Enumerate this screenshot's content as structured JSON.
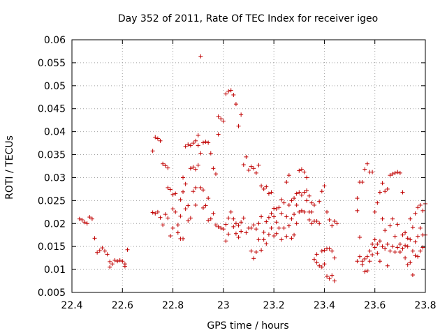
{
  "chart_data": {
    "type": "scatter",
    "title": "Day 352 of 2011, Rate Of TEC Index for receiver igeo",
    "xlabel": "GPS time / hours",
    "ylabel": "ROTI / TECUs",
    "xlim": [
      22.4,
      23.8
    ],
    "ylim": [
      0.005,
      0.06
    ],
    "xticks": [
      "22.4",
      "22.6",
      "22.8",
      "23",
      "23.2",
      "23.4",
      "23.6",
      "23.8"
    ],
    "yticks": [
      "0.005",
      "0.01",
      "0.015",
      "0.02",
      "0.025",
      "0.03",
      "0.035",
      "0.04",
      "0.045",
      "0.05",
      "0.055",
      "0.06"
    ],
    "grid": true,
    "marker": "+",
    "color": "#c00000",
    "points": [
      [
        22.43,
        0.021
      ],
      [
        22.44,
        0.0208
      ],
      [
        22.45,
        0.0203
      ],
      [
        22.46,
        0.02
      ],
      [
        22.47,
        0.0214
      ],
      [
        22.48,
        0.021
      ],
      [
        22.49,
        0.0168
      ],
      [
        22.5,
        0.0137
      ],
      [
        22.51,
        0.0141
      ],
      [
        22.52,
        0.0147
      ],
      [
        22.53,
        0.014
      ],
      [
        22.54,
        0.0133
      ],
      [
        22.55,
        0.0117
      ],
      [
        22.55,
        0.0105
      ],
      [
        22.56,
        0.0112
      ],
      [
        22.57,
        0.012
      ],
      [
        22.58,
        0.0118
      ],
      [
        22.59,
        0.012
      ],
      [
        22.6,
        0.0118
      ],
      [
        22.61,
        0.0107
      ],
      [
        22.61,
        0.0112
      ],
      [
        22.62,
        0.0143
      ],
      [
        22.72,
        0.0224
      ],
      [
        22.72,
        0.0358
      ],
      [
        22.73,
        0.0222
      ],
      [
        22.73,
        0.0388
      ],
      [
        22.74,
        0.0385
      ],
      [
        22.74,
        0.0225
      ],
      [
        22.75,
        0.038
      ],
      [
        22.75,
        0.0213
      ],
      [
        22.76,
        0.033
      ],
      [
        22.76,
        0.0197
      ],
      [
        22.77,
        0.0326
      ],
      [
        22.77,
        0.022
      ],
      [
        22.78,
        0.0321
      ],
      [
        22.78,
        0.0278
      ],
      [
        22.78,
        0.0212
      ],
      [
        22.79,
        0.0173
      ],
      [
        22.79,
        0.0274
      ],
      [
        22.8,
        0.0263
      ],
      [
        22.8,
        0.0232
      ],
      [
        22.8,
        0.019
      ],
      [
        22.81,
        0.0225
      ],
      [
        22.81,
        0.0265
      ],
      [
        22.82,
        0.0197
      ],
      [
        22.82,
        0.018
      ],
      [
        22.83,
        0.0252
      ],
      [
        22.83,
        0.0167
      ],
      [
        22.83,
        0.0216
      ],
      [
        22.84,
        0.0269
      ],
      [
        22.84,
        0.03
      ],
      [
        22.84,
        0.0167
      ],
      [
        22.85,
        0.0368
      ],
      [
        22.85,
        0.0232
      ],
      [
        22.85,
        0.0286
      ],
      [
        22.86,
        0.0372
      ],
      [
        22.86,
        0.0206
      ],
      [
        22.86,
        0.0239
      ],
      [
        22.87,
        0.037
      ],
      [
        22.87,
        0.032
      ],
      [
        22.87,
        0.0212
      ],
      [
        22.88,
        0.0375
      ],
      [
        22.88,
        0.0323
      ],
      [
        22.88,
        0.027
      ],
      [
        22.89,
        0.038
      ],
      [
        22.89,
        0.0318
      ],
      [
        22.89,
        0.0278
      ],
      [
        22.89,
        0.024
      ],
      [
        22.9,
        0.0392
      ],
      [
        22.9,
        0.0327
      ],
      [
        22.9,
        0.037
      ],
      [
        22.91,
        0.0564
      ],
      [
        22.91,
        0.0278
      ],
      [
        22.91,
        0.0353
      ],
      [
        22.92,
        0.0376
      ],
      [
        22.92,
        0.0273
      ],
      [
        22.92,
        0.0234
      ],
      [
        22.93,
        0.0378
      ],
      [
        22.93,
        0.0239
      ],
      [
        22.94,
        0.0376
      ],
      [
        22.94,
        0.0255
      ],
      [
        22.94,
        0.0207
      ],
      [
        22.95,
        0.0353
      ],
      [
        22.95,
        0.021
      ],
      [
        22.96,
        0.032
      ],
      [
        22.96,
        0.0222
      ],
      [
        22.97,
        0.0308
      ],
      [
        22.97,
        0.0197
      ],
      [
        22.98,
        0.0433
      ],
      [
        22.98,
        0.0193
      ],
      [
        22.98,
        0.0394
      ],
      [
        22.99,
        0.0428
      ],
      [
        22.99,
        0.019
      ],
      [
        23.0,
        0.0423
      ],
      [
        23.0,
        0.0188
      ],
      [
        23.01,
        0.0198
      ],
      [
        23.01,
        0.0482
      ],
      [
        23.01,
        0.0162
      ],
      [
        23.02,
        0.0488
      ],
      [
        23.02,
        0.0212
      ],
      [
        23.02,
        0.0177
      ],
      [
        23.03,
        0.049
      ],
      [
        23.03,
        0.0225
      ],
      [
        23.04,
        0.048
      ],
      [
        23.04,
        0.0193
      ],
      [
        23.04,
        0.021
      ],
      [
        23.05,
        0.046
      ],
      [
        23.05,
        0.02
      ],
      [
        23.05,
        0.0178
      ],
      [
        23.06,
        0.0412
      ],
      [
        23.06,
        0.0196
      ],
      [
        23.06,
        0.017
      ],
      [
        23.07,
        0.0437
      ],
      [
        23.07,
        0.0183
      ],
      [
        23.07,
        0.0203
      ],
      [
        23.08,
        0.0328
      ],
      [
        23.08,
        0.0212
      ],
      [
        23.09,
        0.018
      ],
      [
        23.09,
        0.0345
      ],
      [
        23.1,
        0.0316
      ],
      [
        23.1,
        0.019
      ],
      [
        23.11,
        0.019
      ],
      [
        23.11,
        0.0324
      ],
      [
        23.11,
        0.014
      ],
      [
        23.12,
        0.032
      ],
      [
        23.12,
        0.0197
      ],
      [
        23.12,
        0.0124
      ],
      [
        23.13,
        0.0138
      ],
      [
        23.13,
        0.031
      ],
      [
        23.13,
        0.0188
      ],
      [
        23.14,
        0.0327
      ],
      [
        23.14,
        0.0165
      ],
      [
        23.14,
        0.02
      ],
      [
        23.15,
        0.0282
      ],
      [
        23.15,
        0.0142
      ],
      [
        23.15,
        0.0215
      ],
      [
        23.16,
        0.0275
      ],
      [
        23.16,
        0.0165
      ],
      [
        23.16,
        0.0181
      ],
      [
        23.17,
        0.028
      ],
      [
        23.17,
        0.0204
      ],
      [
        23.17,
        0.0156
      ],
      [
        23.18,
        0.0265
      ],
      [
        23.18,
        0.0213
      ],
      [
        23.18,
        0.0176
      ],
      [
        23.19,
        0.0268
      ],
      [
        23.19,
        0.0222
      ],
      [
        23.19,
        0.019
      ],
      [
        23.2,
        0.0233
      ],
      [
        23.2,
        0.0215
      ],
      [
        23.2,
        0.0173
      ],
      [
        23.21,
        0.0232
      ],
      [
        23.21,
        0.0203
      ],
      [
        23.21,
        0.0178
      ],
      [
        23.22,
        0.0235
      ],
      [
        23.22,
        0.019
      ],
      [
        23.23,
        0.0252
      ],
      [
        23.23,
        0.0222
      ],
      [
        23.23,
        0.0165
      ],
      [
        23.24,
        0.0245
      ],
      [
        23.24,
        0.019
      ],
      [
        23.25,
        0.029
      ],
      [
        23.25,
        0.0215
      ],
      [
        23.25,
        0.0172
      ],
      [
        23.26,
        0.0305
      ],
      [
        23.26,
        0.024
      ],
      [
        23.26,
        0.0195
      ],
      [
        23.27,
        0.025
      ],
      [
        23.27,
        0.021
      ],
      [
        23.27,
        0.0168
      ],
      [
        23.28,
        0.0255
      ],
      [
        23.28,
        0.022
      ],
      [
        23.28,
        0.0175
      ],
      [
        23.29,
        0.0265
      ],
      [
        23.29,
        0.024
      ],
      [
        23.29,
        0.02
      ],
      [
        23.3,
        0.0315
      ],
      [
        23.3,
        0.0268
      ],
      [
        23.3,
        0.0225
      ],
      [
        23.31,
        0.0318
      ],
      [
        23.31,
        0.0262
      ],
      [
        23.31,
        0.0228
      ],
      [
        23.32,
        0.0312
      ],
      [
        23.32,
        0.0268
      ],
      [
        23.32,
        0.0225
      ],
      [
        23.33,
        0.03
      ],
      [
        23.33,
        0.0272
      ],
      [
        23.33,
        0.025
      ],
      [
        23.34,
        0.026
      ],
      [
        23.34,
        0.0225
      ],
      [
        23.34,
        0.0208
      ],
      [
        23.35,
        0.0245
      ],
      [
        23.35,
        0.0225
      ],
      [
        23.35,
        0.02
      ],
      [
        23.36,
        0.024
      ],
      [
        23.36,
        0.0205
      ],
      [
        23.36,
        0.0122
      ],
      [
        23.37,
        0.0205
      ],
      [
        23.37,
        0.0115
      ],
      [
        23.37,
        0.0133
      ],
      [
        23.38,
        0.0248
      ],
      [
        23.38,
        0.0108
      ],
      [
        23.38,
        0.02
      ],
      [
        23.39,
        0.027
      ],
      [
        23.39,
        0.014
      ],
      [
        23.39,
        0.0105
      ],
      [
        23.4,
        0.0282
      ],
      [
        23.4,
        0.0142
      ],
      [
        23.4,
        0.0112
      ],
      [
        23.41,
        0.0225
      ],
      [
        23.41,
        0.0145
      ],
      [
        23.41,
        0.0085
      ],
      [
        23.42,
        0.0208
      ],
      [
        23.42,
        0.0145
      ],
      [
        23.42,
        0.008
      ],
      [
        23.43,
        0.0195
      ],
      [
        23.43,
        0.014
      ],
      [
        23.43,
        0.0087
      ],
      [
        23.44,
        0.0205
      ],
      [
        23.44,
        0.0125
      ],
      [
        23.44,
        0.0075
      ],
      [
        23.45,
        0.02
      ],
      [
        23.53,
        0.0228
      ],
      [
        23.53,
        0.0255
      ],
      [
        23.53,
        0.0118
      ],
      [
        23.54,
        0.029
      ],
      [
        23.54,
        0.017
      ],
      [
        23.54,
        0.0128
      ],
      [
        23.55,
        0.029
      ],
      [
        23.55,
        0.011
      ],
      [
        23.55,
        0.0118
      ],
      [
        23.56,
        0.0318
      ],
      [
        23.56,
        0.0123
      ],
      [
        23.56,
        0.0095
      ],
      [
        23.57,
        0.033
      ],
      [
        23.57,
        0.0128
      ],
      [
        23.57,
        0.0097
      ],
      [
        23.58,
        0.0312
      ],
      [
        23.58,
        0.014
      ],
      [
        23.58,
        0.0118
      ],
      [
        23.59,
        0.0312
      ],
      [
        23.59,
        0.0155
      ],
      [
        23.59,
        0.0132
      ],
      [
        23.6,
        0.0225
      ],
      [
        23.6,
        0.0165
      ],
      [
        23.6,
        0.0148
      ],
      [
        23.61,
        0.0245
      ],
      [
        23.61,
        0.0155
      ],
      [
        23.61,
        0.0135
      ],
      [
        23.62,
        0.0268
      ],
      [
        23.62,
        0.0162
      ],
      [
        23.62,
        0.0118
      ],
      [
        23.63,
        0.0288
      ],
      [
        23.63,
        0.021
      ],
      [
        23.63,
        0.015
      ],
      [
        23.64,
        0.027
      ],
      [
        23.64,
        0.0185
      ],
      [
        23.64,
        0.0145
      ],
      [
        23.65,
        0.0275
      ],
      [
        23.65,
        0.0155
      ],
      [
        23.65,
        0.0108
      ],
      [
        23.66,
        0.0305
      ],
      [
        23.66,
        0.0195
      ],
      [
        23.66,
        0.014
      ],
      [
        23.67,
        0.0308
      ],
      [
        23.67,
        0.021
      ],
      [
        23.67,
        0.015
      ],
      [
        23.68,
        0.031
      ],
      [
        23.68,
        0.0172
      ],
      [
        23.68,
        0.0138
      ],
      [
        23.69,
        0.0312
      ],
      [
        23.69,
        0.0198
      ],
      [
        23.69,
        0.0148
      ],
      [
        23.7,
        0.031
      ],
      [
        23.7,
        0.0155
      ],
      [
        23.7,
        0.0138
      ],
      [
        23.71,
        0.0268
      ],
      [
        23.71,
        0.0175
      ],
      [
        23.71,
        0.0145
      ],
      [
        23.72,
        0.018
      ],
      [
        23.72,
        0.0152
      ],
      [
        23.72,
        0.0125
      ],
      [
        23.73,
        0.0168
      ],
      [
        23.73,
        0.015
      ],
      [
        23.73,
        0.011
      ],
      [
        23.74,
        0.021
      ],
      [
        23.74,
        0.0165
      ],
      [
        23.74,
        0.0115
      ],
      [
        23.75,
        0.0192
      ],
      [
        23.75,
        0.014
      ],
      [
        23.75,
        0.0088
      ],
      [
        23.76,
        0.0222
      ],
      [
        23.76,
        0.016
      ],
      [
        23.76,
        0.013
      ],
      [
        23.77,
        0.0235
      ],
      [
        23.77,
        0.0172
      ],
      [
        23.77,
        0.0128
      ],
      [
        23.78,
        0.024
      ],
      [
        23.78,
        0.019
      ],
      [
        23.78,
        0.014
      ],
      [
        23.79,
        0.0228
      ],
      [
        23.79,
        0.0175
      ],
      [
        23.79,
        0.0148
      ],
      [
        23.8,
        0.0243
      ],
      [
        23.8,
        0.0175
      ]
    ]
  }
}
